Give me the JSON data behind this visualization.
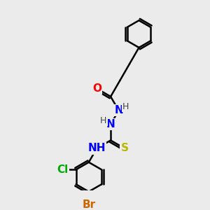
{
  "bg_color": "#ebebeb",
  "bond_color": "#000000",
  "bond_width": 1.8,
  "atoms": {
    "O": {
      "color": "#ff0000",
      "fontsize": 11,
      "fontweight": "bold"
    },
    "N": {
      "color": "#0000ff",
      "fontsize": 11,
      "fontweight": "bold"
    },
    "S": {
      "color": "#b8b800",
      "fontsize": 11,
      "fontweight": "bold"
    },
    "Cl": {
      "color": "#00aa00",
      "fontsize": 11,
      "fontweight": "bold"
    },
    "Br": {
      "color": "#cc6600",
      "fontsize": 11,
      "fontweight": "bold"
    },
    "H": {
      "color": "#444444",
      "fontsize": 9,
      "fontweight": "normal"
    }
  },
  "figsize": [
    3.0,
    3.0
  ],
  "dpi": 100
}
